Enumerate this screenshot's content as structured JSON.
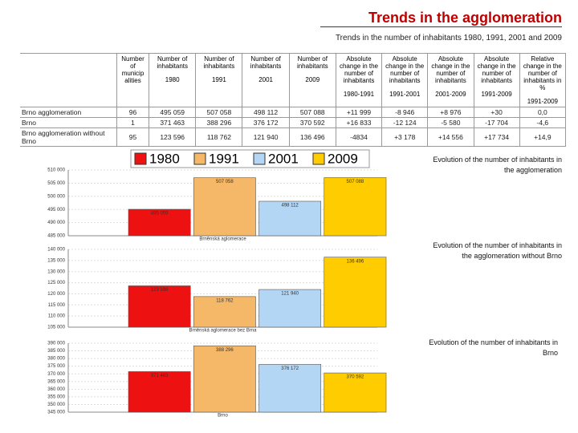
{
  "header": {
    "title": "Trends in the agglomeration",
    "subtitle": "Trends in the number of inhabitants 1980, 1991, 2001 and 2009"
  },
  "table": {
    "columns": [
      {
        "title": "Number of municip alities"
      },
      {
        "title": "Number of inhabitants",
        "period": "1980"
      },
      {
        "title": "Number of inhabitants",
        "period": "1991"
      },
      {
        "title": "Number of inhabitants",
        "period": "2001"
      },
      {
        "title": "Number of inhabitants",
        "period": "2009"
      },
      {
        "title": "Absolute change in the number of inhabitants",
        "period": "1980-1991"
      },
      {
        "title": "Absolute change in the number of inhabitants",
        "period": "1991-2001"
      },
      {
        "title": "Absolute change in the number of inhabitants",
        "period": "2001-2009"
      },
      {
        "title": "Absolute change in the number of inhabitants",
        "period": "1991-2009"
      },
      {
        "title": "Relative change in the number of inhabitants in %",
        "period": "1991-2009"
      }
    ],
    "rows": [
      [
        "Brno agglomeration",
        "96",
        "495 059",
        "507 058",
        "498 112",
        "507 088",
        "+11 999",
        "-8 946",
        "+8 976",
        "+30",
        "0,0"
      ],
      [
        "Brno",
        "1",
        "371 463",
        "388 296",
        "376 172",
        "370 592",
        "+16 833",
        "-12 124",
        "-5 580",
        "-17 704",
        "-4,6"
      ],
      [
        "Brno agglomeration without Brno",
        "95",
        "123 596",
        "118 762",
        "121 940",
        "136 496",
        "-4834",
        "+3 178",
        "+14 556",
        "+17 734",
        "+14,9"
      ]
    ]
  },
  "chart_data": [
    {
      "type": "bar",
      "title": "Evolution of the number of inhabitants in the agglomeration",
      "x_label": "Brněnská aglomerace",
      "categories": [
        "1980",
        "1991",
        "2001",
        "2009"
      ],
      "colors": [
        "#ee1111",
        "#f5b868",
        "#b3d6f5",
        "#ffcc00"
      ],
      "values": [
        495059,
        507058,
        498112,
        507088
      ],
      "value_labels": [
        "495 059",
        "507 058",
        "498 112",
        "507 088"
      ],
      "ylim": [
        485000,
        510000
      ],
      "yticks": [
        {
          "value": 485000,
          "label": "485 000"
        },
        {
          "value": 490000,
          "label": "490 000"
        },
        {
          "value": 495000,
          "label": "495 000"
        },
        {
          "value": 500000,
          "label": "500 000"
        },
        {
          "value": 505000,
          "label": "505 000"
        },
        {
          "value": 510000,
          "label": "510 000"
        }
      ],
      "grid": true
    },
    {
      "type": "bar",
      "title": "Evolution of the number of inhabitants in the agglomeration without Brno",
      "x_label": "Brněnská aglomerace bez Brna",
      "categories": [
        "1980",
        "1991",
        "2001",
        "2009"
      ],
      "colors": [
        "#ee1111",
        "#f5b868",
        "#b3d6f5",
        "#ffcc00"
      ],
      "values": [
        123596,
        118762,
        121940,
        136496
      ],
      "value_labels": [
        "123 596",
        "118 762",
        "121 940",
        "136 496"
      ],
      "ylim": [
        105000,
        140000
      ],
      "yticks": [
        {
          "value": 105000,
          "label": "105 000"
        },
        {
          "value": 110000,
          "label": "110 000"
        },
        {
          "value": 115000,
          "label": "115 000"
        },
        {
          "value": 120000,
          "label": "120 000"
        },
        {
          "value": 125000,
          "label": "125 000"
        },
        {
          "value": 130000,
          "label": "130 000"
        },
        {
          "value": 135000,
          "label": "135 000"
        },
        {
          "value": 140000,
          "label": "140 000"
        }
      ],
      "grid": true
    },
    {
      "type": "bar",
      "title": "Evolution of the number of inhabitants in Brno",
      "x_label": "Brno",
      "categories": [
        "1980",
        "1991",
        "2001",
        "2009"
      ],
      "colors": [
        "#ee1111",
        "#f5b868",
        "#b3d6f5",
        "#ffcc00"
      ],
      "values": [
        371463,
        388296,
        376172,
        370592
      ],
      "value_labels": [
        "371 463",
        "388 296",
        "376 172",
        "370 592"
      ],
      "ylim": [
        345000,
        390000
      ],
      "yticks": [
        {
          "value": 345000,
          "label": "345 000"
        },
        {
          "value": 350000,
          "label": "350 000"
        },
        {
          "value": 355000,
          "label": "355 000"
        },
        {
          "value": 360000,
          "label": "360 000"
        },
        {
          "value": 365000,
          "label": "365 000"
        },
        {
          "value": 370000,
          "label": "370 000"
        },
        {
          "value": 375000,
          "label": "375 000"
        },
        {
          "value": 380000,
          "label": "380 000"
        },
        {
          "value": 385000,
          "label": "385 000"
        },
        {
          "value": 390000,
          "label": "390 000"
        }
      ],
      "grid": true
    }
  ]
}
